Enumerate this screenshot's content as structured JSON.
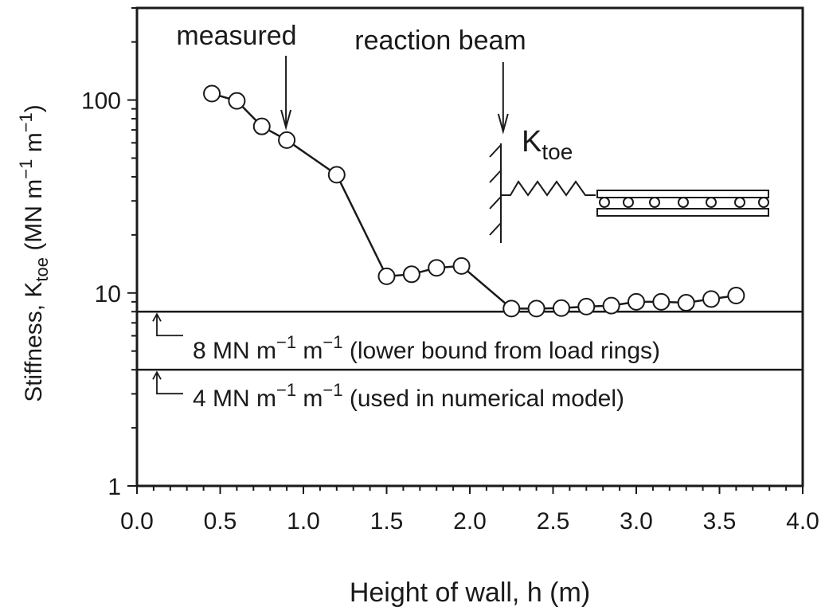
{
  "chart_data": {
    "type": "line",
    "title": "",
    "xlabel": "Height of wall, h (m)",
    "ylabel": {
      "main": "Stiffness, K",
      "sub": "toe",
      "unit_a": " (MN m",
      "sup1": "−1",
      "unit_b": " m",
      "sup2": "−1",
      "unit_c": ")"
    },
    "xlim": [
      0,
      4
    ],
    "ylim": [
      1,
      300
    ],
    "yscale": "log",
    "grid": false,
    "x_ticks": [
      "0.0",
      "0.5",
      "1.0",
      "1.5",
      "2.0",
      "2.5",
      "3.0",
      "3.5",
      "4.0"
    ],
    "y_ticks": [
      "1",
      "10",
      "100"
    ],
    "series": [
      {
        "name": "measured",
        "marker": "open-circle",
        "x": [
          0.45,
          0.6,
          0.75,
          0.9,
          1.2,
          1.5,
          1.65,
          1.8,
          1.95,
          2.25,
          2.4,
          2.55,
          2.7,
          2.85,
          3.0,
          3.15,
          3.3,
          3.45,
          3.6
        ],
        "y": [
          108,
          99,
          73,
          62,
          41,
          12.2,
          12.5,
          13.5,
          13.8,
          8.3,
          8.3,
          8.35,
          8.5,
          8.6,
          9.0,
          9.0,
          8.9,
          9.3,
          9.7
        ]
      }
    ],
    "reference_lines": [
      {
        "value": 8,
        "label": {
          "num": "8 MN m",
          "sup1": "−1",
          "mid": " m",
          "sup2": "−1",
          "note": " (lower bound from load rings)"
        }
      },
      {
        "value": 4,
        "label": {
          "num": "4 MN m",
          "sup1": "−1",
          "mid": " m",
          "sup2": "−1",
          "note": " (used in numerical model)"
        }
      }
    ],
    "annotations": {
      "measured": {
        "text": "measured",
        "x": 0.9
      },
      "reaction_beam": {
        "text": "reaction beam",
        "x": 2.2
      },
      "inset_label": {
        "main": "K",
        "sub": "toe"
      }
    }
  }
}
